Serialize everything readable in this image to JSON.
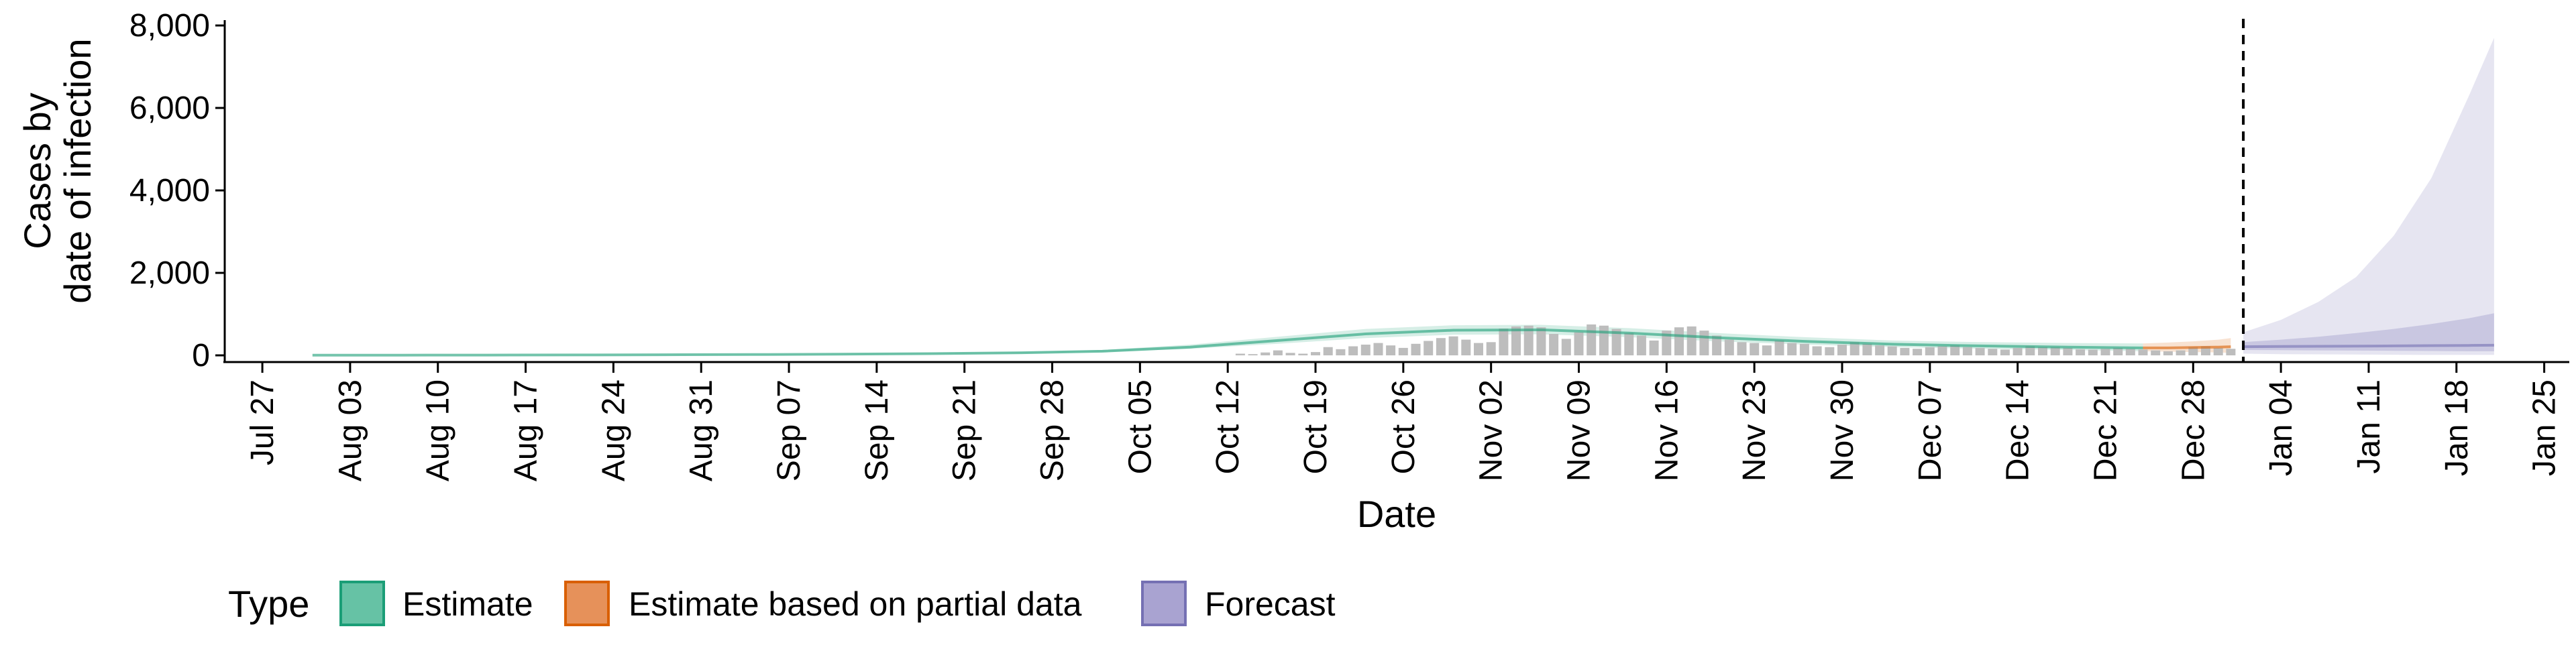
{
  "chart_data": {
    "type": "area",
    "title": "",
    "xlabel": "Date",
    "ylabel": [
      "Cases by",
      "date of infection"
    ],
    "ylim": [
      0,
      8000
    ],
    "y_ticks": [
      0,
      2000,
      4000,
      6000,
      8000
    ],
    "y_tick_labels": [
      "0",
      "2,000",
      "4,000",
      "6,000",
      "8,000"
    ],
    "x_range": [
      "2020-07-24",
      "2021-01-27"
    ],
    "x_ticks": [
      "2020-07-27",
      "2020-08-03",
      "2020-08-10",
      "2020-08-17",
      "2020-08-24",
      "2020-08-31",
      "2020-09-07",
      "2020-09-14",
      "2020-09-21",
      "2020-09-28",
      "2020-10-05",
      "2020-10-12",
      "2020-10-19",
      "2020-10-26",
      "2020-11-02",
      "2020-11-09",
      "2020-11-16",
      "2020-11-23",
      "2020-11-30",
      "2020-12-07",
      "2020-12-14",
      "2020-12-21",
      "2020-12-28",
      "2021-01-04",
      "2021-01-11",
      "2021-01-18",
      "2021-01-25"
    ],
    "x_tick_labels": [
      "Jul 27",
      "Aug 03",
      "Aug 10",
      "Aug 17",
      "Aug 24",
      "Aug 31",
      "Sep 07",
      "Sep 14",
      "Sep 21",
      "Sep 28",
      "Oct 05",
      "Oct 12",
      "Oct 19",
      "Oct 26",
      "Nov 02",
      "Nov 09",
      "Nov 16",
      "Nov 23",
      "Nov 30",
      "Dec 07",
      "Dec 14",
      "Dec 21",
      "Dec 28",
      "Jan 04",
      "Jan 11",
      "Jan 18",
      "Jan 25"
    ],
    "grid": false,
    "legend_position": "bottom",
    "legend": {
      "title": "Type",
      "entries": [
        {
          "label": "Estimate",
          "fill": "#66c2a5",
          "stroke": "#1b9e77"
        },
        {
          "label": "Estimate based on partial data",
          "fill": "#e6915a",
          "stroke": "#d95f02"
        },
        {
          "label": "Forecast",
          "fill": "#a9a3d1",
          "stroke": "#7570b3"
        }
      ]
    },
    "forecast_start_line": "2021-01-01",
    "reported_cases": {
      "color": "#bdbdbd",
      "dates": [
        "2020-10-13",
        "2020-10-14",
        "2020-10-15",
        "2020-10-16",
        "2020-10-17",
        "2020-10-18",
        "2020-10-19",
        "2020-10-20",
        "2020-10-21",
        "2020-10-22",
        "2020-10-23",
        "2020-10-24",
        "2020-10-25",
        "2020-10-26",
        "2020-10-27",
        "2020-10-28",
        "2020-10-29",
        "2020-10-30",
        "2020-10-31",
        "2020-11-01",
        "2020-11-02",
        "2020-11-03",
        "2020-11-04",
        "2020-11-05",
        "2020-11-06",
        "2020-11-07",
        "2020-11-08",
        "2020-11-09",
        "2020-11-10",
        "2020-11-11",
        "2020-11-12",
        "2020-11-13",
        "2020-11-14",
        "2020-11-15",
        "2020-11-16",
        "2020-11-17",
        "2020-11-18",
        "2020-11-19",
        "2020-11-20",
        "2020-11-21",
        "2020-11-22",
        "2020-11-23",
        "2020-11-24",
        "2020-11-25",
        "2020-11-26",
        "2020-11-27",
        "2020-11-28",
        "2020-11-29",
        "2020-11-30",
        "2020-12-01",
        "2020-12-02",
        "2020-12-03",
        "2020-12-04",
        "2020-12-05",
        "2020-12-06",
        "2020-12-07",
        "2020-12-08",
        "2020-12-09",
        "2020-12-10",
        "2020-12-11",
        "2020-12-12",
        "2020-12-13",
        "2020-12-14",
        "2020-12-15",
        "2020-12-16",
        "2020-12-17",
        "2020-12-18",
        "2020-12-19",
        "2020-12-20",
        "2020-12-21",
        "2020-12-22",
        "2020-12-23",
        "2020-12-24",
        "2020-12-25",
        "2020-12-26",
        "2020-12-27",
        "2020-12-28",
        "2020-12-29",
        "2020-12-30",
        "2020-12-31"
      ],
      "values": [
        40,
        30,
        70,
        120,
        60,
        40,
        80,
        200,
        150,
        220,
        260,
        300,
        240,
        180,
        280,
        350,
        420,
        460,
        380,
        300,
        320,
        650,
        700,
        720,
        680,
        520,
        400,
        560,
        750,
        720,
        640,
        540,
        480,
        360,
        600,
        680,
        700,
        600,
        480,
        380,
        320,
        300,
        240,
        360,
        300,
        280,
        220,
        200,
        260,
        320,
        280,
        240,
        220,
        180,
        160,
        200,
        220,
        240,
        200,
        180,
        160,
        140,
        180,
        220,
        200,
        200,
        180,
        150,
        140,
        160,
        180,
        160,
        140,
        120,
        100,
        120,
        200,
        220,
        180,
        160
      ]
    },
    "series": [
      {
        "name": "Estimate",
        "fill": "#1b9e77",
        "dates": [
          "2020-07-31",
          "2020-08-07",
          "2020-08-14",
          "2020-08-21",
          "2020-08-28",
          "2020-09-04",
          "2020-09-11",
          "2020-09-18",
          "2020-09-25",
          "2020-10-02",
          "2020-10-09",
          "2020-10-16",
          "2020-10-23",
          "2020-10-30",
          "2020-11-06",
          "2020-11-13",
          "2020-11-20",
          "2020-11-27",
          "2020-12-04",
          "2020-12-11",
          "2020-12-18",
          "2020-12-24"
        ],
        "median": [
          3,
          5,
          7,
          10,
          15,
          20,
          28,
          40,
          60,
          100,
          200,
          360,
          520,
          610,
          620,
          540,
          430,
          340,
          270,
          230,
          200,
          180
        ],
        "lower_90": [
          1,
          3,
          5,
          7,
          10,
          15,
          20,
          30,
          45,
          80,
          160,
          280,
          420,
          500,
          510,
          440,
          340,
          260,
          200,
          160,
          130,
          100
        ],
        "upper_90": [
          6,
          8,
          12,
          16,
          22,
          30,
          40,
          55,
          80,
          130,
          260,
          450,
          640,
          730,
          740,
          660,
          540,
          440,
          360,
          320,
          300,
          290
        ]
      },
      {
        "name": "Estimate based on partial data",
        "fill": "#d95f02",
        "dates": [
          "2020-12-24",
          "2020-12-26",
          "2020-12-28",
          "2020-12-30",
          "2020-12-31"
        ],
        "median": [
          180,
          180,
          190,
          200,
          210
        ],
        "lower_90": [
          100,
          90,
          80,
          70,
          60
        ],
        "upper_90": [
          290,
          310,
          340,
          380,
          420
        ]
      },
      {
        "name": "Forecast",
        "fill": "#7570b3",
        "dates": [
          "2021-01-01",
          "2021-01-04",
          "2021-01-07",
          "2021-01-10",
          "2021-01-13",
          "2021-01-16",
          "2021-01-19",
          "2021-01-21"
        ],
        "median": [
          210,
          215,
          220,
          225,
          230,
          235,
          240,
          245
        ],
        "lower_90": [
          40,
          30,
          25,
          20,
          15,
          10,
          10,
          10
        ],
        "upper_90": [
          560,
          860,
          1300,
          1900,
          2900,
          4300,
          6300,
          7700
        ],
        "lower_50": [
          130,
          125,
          120,
          115,
          110,
          105,
          100,
          100
        ],
        "upper_50": [
          320,
          380,
          450,
          540,
          640,
          760,
          900,
          1020
        ]
      }
    ]
  }
}
